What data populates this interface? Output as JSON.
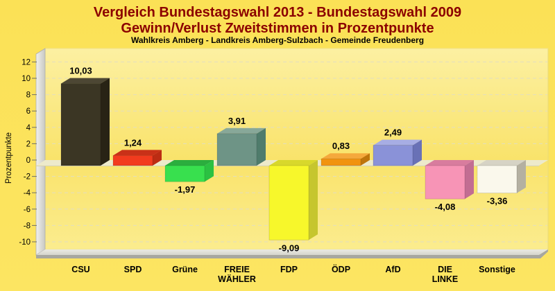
{
  "page_background": "#FBE156",
  "header": {
    "title_line1": "Vergleich Bundestagswahl 2013 - Bundestagswahl 2009",
    "title_line2": "Gewinn/Verlust Zweitstimmen in Prozentpunkte",
    "subtitle": "Wahlkreis Amberg - Landkreis Amberg-Sulzbach - Gemeinde Freudenberg",
    "title_color": "#8B0000",
    "subtitle_color": "#000000"
  },
  "chart_data": {
    "type": "bar",
    "title": "Vergleich Bundestagswahl 2013 - Bundestagswahl 2009",
    "subtitle": "Gewinn/Verlust Zweitstimmen in Prozentpunkte",
    "region_line": "Wahlkreis Amberg - Landkreis Amberg-Sulzbach - Gemeinde Freudenberg",
    "xlabel": "",
    "ylabel": "Prozentpunkte",
    "ylim": [
      -11,
      14
    ],
    "y_ticks": [
      12,
      10,
      8,
      6,
      4,
      2,
      0,
      -2,
      -4,
      -6,
      -8,
      -10
    ],
    "grid": true,
    "legend": false,
    "style": "3d-column",
    "categories": [
      "CSU",
      "SPD",
      "Grüne",
      "FREIE WÄHLER",
      "FDP",
      "ÖDP",
      "AfD",
      "DIE LINKE",
      "Sonstige"
    ],
    "values": [
      10.03,
      1.24,
      -1.97,
      3.91,
      -9.09,
      0.83,
      2.49,
      -4.08,
      -3.36
    ],
    "value_labels": [
      "10,03",
      "1,24",
      "-1,97",
      "3,91",
      "-9,09",
      "0,83",
      "2,49",
      "-4,08",
      "-3,36"
    ],
    "bar_colors": [
      {
        "front": "#3B3624",
        "top": "#4D4734",
        "side": "#282315"
      },
      {
        "front": "#F23B1E",
        "top": "#C93118",
        "side": "#BC2C13"
      },
      {
        "front": "#38E04E",
        "top": "#2BAE3E",
        "side": "#2BC142"
      },
      {
        "front": "#6E9486",
        "top": "#88A899",
        "side": "#4F7C6C"
      },
      {
        "front": "#F7F72B",
        "top": "#D8D82B",
        "side": "#C6C62E"
      },
      {
        "front": "#F1930F",
        "top": "#F5A93C",
        "side": "#BE750C"
      },
      {
        "front": "#8A92D8",
        "top": "#A7ADE4",
        "side": "#6971B6"
      },
      {
        "front": "#F794B6",
        "top": "#D87C9E",
        "side": "#C26D92"
      },
      {
        "front": "#FAF8EC",
        "top": "#D6D3C5",
        "side": "#B4B0A1"
      }
    ],
    "label_color": "#000000"
  }
}
